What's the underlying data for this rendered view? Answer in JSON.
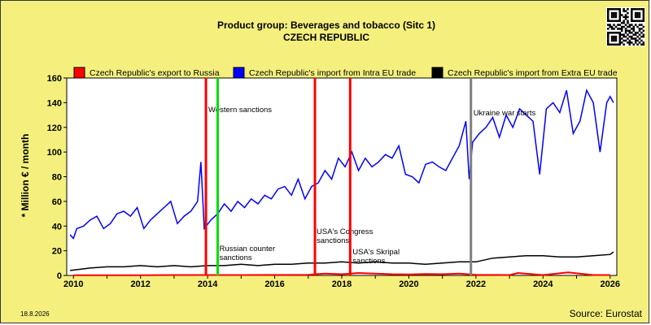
{
  "chart_data": {
    "type": "line",
    "title": "Product group: Beverages and tobacco (Sitc 1)",
    "subtitle": "CZECH REPUBLIC",
    "ylabel": "* Million € / month",
    "ylim": [
      0,
      160
    ],
    "xlim": [
      2009.8,
      2026.2
    ],
    "yticks": [
      0,
      20,
      40,
      60,
      80,
      100,
      120,
      140,
      160
    ],
    "xticks": [
      2010,
      2012,
      2014,
      2016,
      2018,
      2020,
      2022,
      2024,
      2026
    ],
    "grid": false,
    "legend_position": "top",
    "date_label": "18.8.2026",
    "source": "Source: Eurostat",
    "series": [
      {
        "name": "Czech Republic's export to Russia",
        "color": "#ff0000",
        "x": [
          2010.0,
          2011.0,
          2012.0,
          2013.0,
          2014.0,
          2015.0,
          2016.0,
          2017.0,
          2017.5,
          2018.0,
          2018.5,
          2019.0,
          2019.5,
          2020.0,
          2020.5,
          2021.0,
          2021.5,
          2022.0,
          2023.0,
          2023.25,
          2024.0,
          2024.75,
          2025.5,
          2026.0
        ],
        "y": [
          0.2,
          0.2,
          0.2,
          0.3,
          0.3,
          0.3,
          0.4,
          0.5,
          1.5,
          1.0,
          2.0,
          1.5,
          1.0,
          0.8,
          1.2,
          1.0,
          1.5,
          0.5,
          0.3,
          2.0,
          0.3,
          2.5,
          0.3,
          0.3
        ]
      },
      {
        "name": "Czech Republic's import from Intra EU trade",
        "color": "#0000ff",
        "x": [
          2009.9,
          2010.0,
          2010.1,
          2010.3,
          2010.5,
          2010.7,
          2010.9,
          2011.1,
          2011.3,
          2011.5,
          2011.7,
          2011.9,
          2012.1,
          2012.3,
          2012.5,
          2012.7,
          2012.9,
          2013.1,
          2013.3,
          2013.5,
          2013.7,
          2013.8,
          2013.9,
          2014.1,
          2014.3,
          2014.5,
          2014.7,
          2014.9,
          2015.1,
          2015.3,
          2015.5,
          2015.7,
          2015.9,
          2016.1,
          2016.3,
          2016.5,
          2016.7,
          2016.9,
          2017.1,
          2017.3,
          2017.5,
          2017.7,
          2017.9,
          2018.1,
          2018.3,
          2018.5,
          2018.7,
          2018.9,
          2019.1,
          2019.3,
          2019.5,
          2019.7,
          2019.9,
          2020.1,
          2020.3,
          2020.5,
          2020.7,
          2020.9,
          2021.1,
          2021.3,
          2021.5,
          2021.7,
          2021.8,
          2021.9,
          2022.1,
          2022.3,
          2022.5,
          2022.7,
          2022.9,
          2023.1,
          2023.3,
          2023.5,
          2023.7,
          2023.9,
          2024.1,
          2024.3,
          2024.5,
          2024.7,
          2024.9,
          2025.1,
          2025.3,
          2025.5,
          2025.7,
          2025.9,
          2026.0,
          2026.1
        ],
        "y": [
          33,
          30,
          38,
          40,
          45,
          48,
          38,
          42,
          50,
          52,
          48,
          55,
          38,
          45,
          50,
          55,
          60,
          42,
          48,
          52,
          60,
          92,
          38,
          45,
          50,
          58,
          52,
          60,
          55,
          62,
          58,
          65,
          62,
          70,
          72,
          65,
          78,
          62,
          72,
          75,
          85,
          78,
          95,
          88,
          100,
          85,
          95,
          88,
          92,
          98,
          95,
          105,
          82,
          80,
          75,
          90,
          92,
          88,
          85,
          95,
          105,
          125,
          78,
          108,
          115,
          120,
          128,
          112,
          130,
          120,
          135,
          130,
          125,
          82,
          135,
          140,
          132,
          150,
          115,
          125,
          150,
          140,
          100,
          140,
          145,
          140
        ]
      },
      {
        "name": "Czech Republic's import from Extra EU trade",
        "color": "#000000",
        "x": [
          2009.9,
          2010.5,
          2011.0,
          2011.5,
          2012.0,
          2012.5,
          2013.0,
          2013.5,
          2014.0,
          2014.5,
          2015.0,
          2015.5,
          2016.0,
          2016.5,
          2017.0,
          2017.5,
          2018.0,
          2018.5,
          2019.0,
          2019.5,
          2020.0,
          2020.5,
          2021.0,
          2021.5,
          2022.0,
          2022.5,
          2023.0,
          2023.5,
          2024.0,
          2024.5,
          2025.0,
          2025.5,
          2026.0,
          2026.1
        ],
        "y": [
          4,
          6,
          7,
          7,
          8,
          7,
          8,
          7,
          8,
          8,
          9,
          8,
          9,
          9,
          10,
          10,
          11,
          10,
          11,
          10,
          10,
          9,
          10,
          11,
          11,
          14,
          15,
          16,
          16,
          15,
          15,
          16,
          17,
          19
        ]
      }
    ],
    "events": [
      {
        "label": "Western sanctions",
        "x": 2013.95,
        "color": "#ff0000"
      },
      {
        "label": "Russian counter sanctions",
        "x": 2014.3,
        "color": "#00dd00"
      },
      {
        "label": "USA's Congress sanctions",
        "x": 2017.2,
        "color": "#ff0000"
      },
      {
        "label": "USA's Skripal sanctions",
        "x": 2018.25,
        "color": "#ff0000"
      },
      {
        "label": "Ukraine war starts",
        "x": 2021.85,
        "color": "#808080"
      }
    ]
  }
}
